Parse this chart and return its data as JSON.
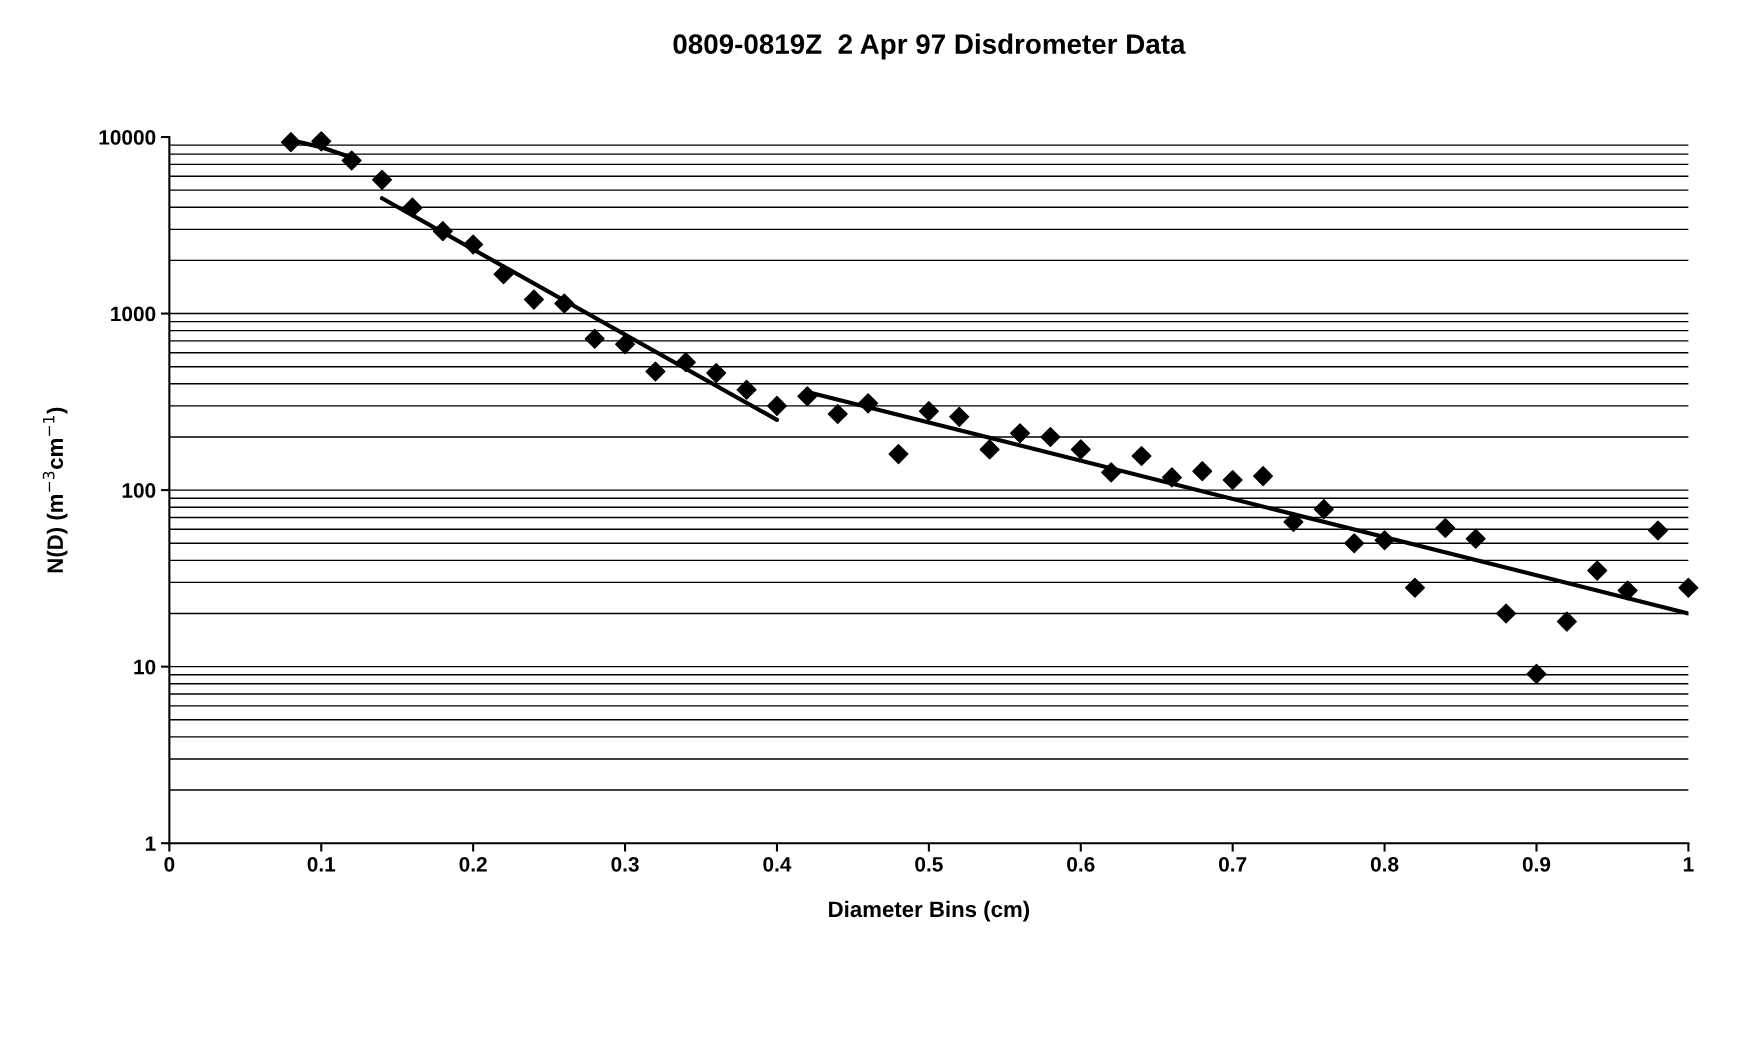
{
  "chart_data": {
    "type": "scatter",
    "title": "0809-0819Z  2 Apr 97 Disdrometer Data",
    "xlabel": "Diameter Bins (cm)",
    "ylabel": "N(D) (m$^{−3}$cm$^{−1}$)",
    "x": [
      0.08,
      0.1,
      0.12,
      0.14,
      0.16,
      0.18,
      0.2,
      0.22,
      0.24,
      0.26,
      0.28,
      0.3,
      0.32,
      0.34,
      0.36,
      0.38,
      0.4,
      0.42,
      0.44,
      0.46,
      0.48,
      0.5,
      0.52,
      0.54,
      0.56,
      0.58,
      0.6,
      0.62,
      0.64,
      0.66,
      0.68,
      0.7,
      0.72,
      0.74,
      0.76,
      0.78,
      0.8,
      0.82,
      0.84,
      0.86,
      0.88,
      0.9,
      0.92,
      0.94,
      0.96,
      0.98,
      1.0
    ],
    "series": [
      {
        "color": "#000000",
        "marker": "diamond",
        "values": [
          9350,
          9450,
          7360,
          5720,
          3980,
          2930,
          2460,
          1670,
          1200,
          1140,
          720,
          670,
          470,
          530,
          460,
          370,
          300,
          340,
          270,
          310,
          160,
          280,
          260,
          170,
          210,
          200,
          170,
          126,
          156,
          118,
          128,
          114,
          120,
          66,
          78,
          50,
          52,
          28,
          61,
          53,
          20,
          9.1,
          18,
          35,
          27,
          59,
          28
        ]
      },
      {
        "type": "line",
        "color": "#000000",
        "marker": "none",
        "line_style": "solid",
        "x": [
          0.08,
          0.1,
          0.12
        ],
        "values": [
          9600,
          8750,
          7660
        ]
      },
      {
        "type": "line",
        "color": "#000000",
        "marker": "none",
        "line_style": "solid",
        "x": [
          0.14,
          0.4
        ],
        "values": [
          4500,
          250
        ]
      },
      {
        "type": "line",
        "color": "#000000",
        "marker": "none",
        "line_style": "solid",
        "x": [
          0.42,
          1.0
        ],
        "values": [
          360,
          20
        ]
      }
    ],
    "log": "y",
    "xlim": [
      0,
      1
    ],
    "xticks": [
      0,
      0.1,
      0.2,
      0.3,
      0.4,
      0.5,
      0.6,
      0.7,
      0.8,
      0.9,
      1
    ],
    "ylim": [
      1,
      10000
    ],
    "yticks": [
      1,
      10,
      100,
      1000,
      10000
    ],
    "grid": "y",
    "legend": false
  }
}
